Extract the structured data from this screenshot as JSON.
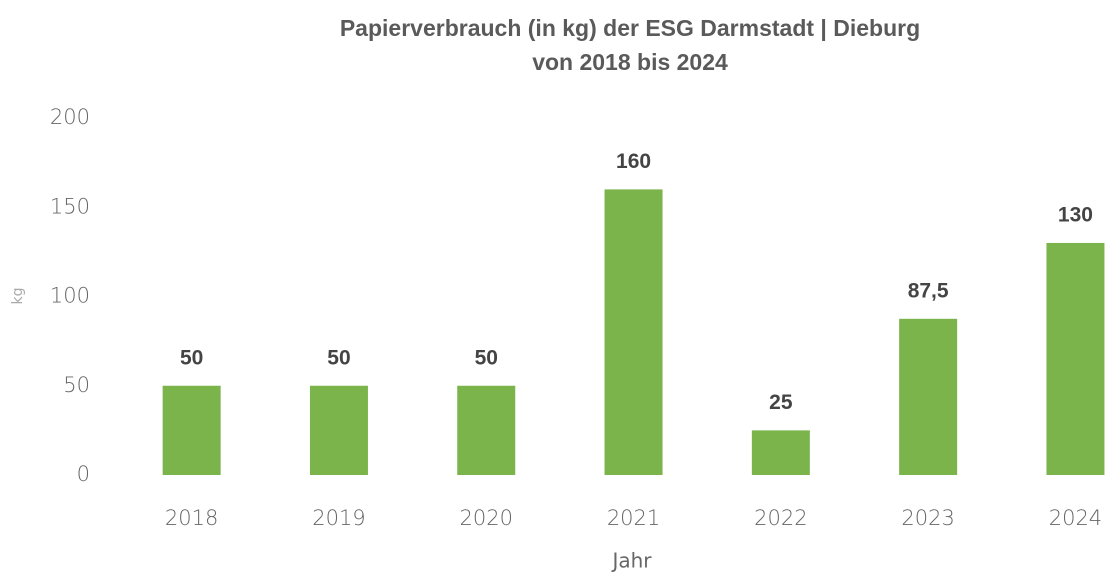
{
  "chart_data": {
    "type": "bar",
    "title": [
      "Papierverbrauch (in kg) der ESG Darmstadt | Dieburg",
      "von 2018 bis 2024"
    ],
    "x_label": "Jahr",
    "y_label": "kg",
    "categories": [
      "2018",
      "2019",
      "2020",
      "2021",
      "2022",
      "2023",
      "2024"
    ],
    "values": [
      50,
      50,
      50,
      160,
      25,
      87.5,
      130
    ],
    "value_labels": [
      "50",
      "50",
      "50",
      "160",
      "25",
      "87,5",
      "130"
    ],
    "color": "#7ab44b",
    "ylim": [
      0,
      200
    ],
    "yticks": [
      0,
      50,
      100,
      150,
      200
    ],
    "grid": false
  }
}
